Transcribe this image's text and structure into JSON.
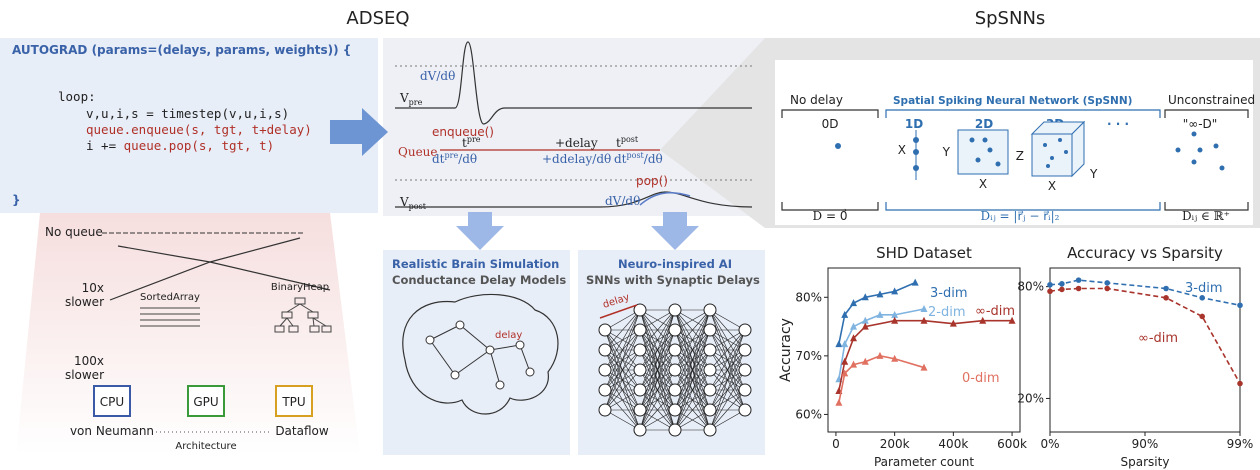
{
  "titles": {
    "left": "ADSEQ",
    "right": "SpSNNs"
  },
  "code": {
    "header": "AUTOGRAD (params=(delays, params, weights)) {",
    "loop": "loop:",
    "step": "v,u,i,s = timestep(v,u,i,s)",
    "enqueue": "queue.enqueue(s, tgt, t+delay)",
    "pop_prefix": "i += ",
    "pop": "queue.pop(s, tgt, t)",
    "footer": "}"
  },
  "hardware": {
    "no_queue": "No queue",
    "slow10": [
      "10x",
      "slower"
    ],
    "slow100": [
      "100x",
      "slower"
    ],
    "sorted_array": "SortedArray",
    "binary_heap": "BinaryHeap",
    "chips": [
      "CPU",
      "GPU",
      "TPU"
    ],
    "von_neumann": "von Neumann",
    "architecture": "Architecture",
    "dataflow": "Dataflow"
  },
  "neuron": {
    "dv_top": "dV/dθ",
    "v_pre": {
      "base": "V",
      "sub": "pre"
    },
    "enqueue": "enqueue()",
    "queue": "Queue",
    "t_pre": {
      "base": "t",
      "sup": "pre"
    },
    "plus_delay": "+delay",
    "t_post": {
      "base": "t",
      "sup": "post"
    },
    "dt_pre": {
      "base": "dt",
      "sup": "pre",
      "rest": "/dθ"
    },
    "ddelay": "+ddelay/dθ",
    "dt_post": {
      "base": "dt",
      "sup": "post",
      "rest": "/dθ"
    },
    "pop": "pop()",
    "v_post": {
      "base": "V",
      "sub": "post"
    },
    "dv_bottom": "dV/dθ"
  },
  "applications": [
    {
      "title": "Realistic Brain Simulation",
      "subtitle": "Conductance Delay Models",
      "label": "delay"
    },
    {
      "title": "Neuro-inspired AI",
      "subtitle": "SNNs with Synaptic Delays",
      "label": "delay"
    }
  ],
  "spsnn": {
    "no_delay": "No delay",
    "spatial": "Spatial Spiking Neural Network (SpSNN)",
    "unconstrained": "Unconstrained",
    "dims": [
      "0D",
      "1D",
      "2D",
      "3D",
      "· · ·",
      "\"∞-D\""
    ],
    "axes_1d": [
      "X"
    ],
    "axes_2d": [
      "Y",
      "X"
    ],
    "axes_3d": [
      "Z",
      "X",
      "Y"
    ],
    "formula_0d": "D = 0⃗",
    "formula_spatial": "Dᵢⱼ = |r⃗ⱼ − r⃗ᵢ|₂",
    "formula_inf": "Dᵢⱼ ∈ ℝ⁺"
  },
  "chart_data": [
    {
      "type": "line",
      "title": "SHD Dataset",
      "xlabel": "Parameter count",
      "ylabel": "Accuracy",
      "marker": "triangle",
      "linestyle": "solid",
      "xlim": [
        -27000,
        627000
      ],
      "ylim": [
        57,
        85
      ],
      "xticks": [
        0,
        {
          "value": 200000,
          "label": "200k"
        },
        {
          "value": 400000,
          "label": "400k"
        },
        {
          "value": 600000,
          "label": "600k"
        }
      ],
      "yticks": [
        {
          "value": 60,
          "label": "60%"
        },
        {
          "value": 70,
          "label": "70%"
        },
        {
          "value": 80,
          "label": "80%"
        }
      ],
      "series": [
        {
          "name": "3-dim",
          "color": "#2f6fb0",
          "x": [
            10000,
            30000,
            60000,
            100000,
            150000,
            200000,
            270000
          ],
          "values": [
            72,
            77,
            79,
            80,
            80.5,
            81,
            82.5
          ]
        },
        {
          "name": "2-dim",
          "color": "#7fb3e0",
          "x": [
            10000,
            30000,
            60000,
            100000,
            150000,
            200000,
            300000
          ],
          "values": [
            66,
            72,
            75,
            76,
            77,
            77,
            78
          ]
        },
        {
          "name": "∞-dim",
          "color": "#a8342c",
          "x": [
            10000,
            30000,
            60000,
            100000,
            200000,
            300000,
            400000,
            500000,
            600000
          ],
          "values": [
            64,
            69,
            73,
            75,
            76,
            76,
            75.5,
            76,
            76
          ]
        },
        {
          "name": "0-dim",
          "color": "#e07060",
          "x": [
            10000,
            30000,
            60000,
            100000,
            150000,
            200000,
            300000
          ],
          "values": [
            62,
            67,
            68.5,
            69,
            70,
            69.5,
            68
          ]
        }
      ]
    },
    {
      "type": "line",
      "title": "Accuracy vs Sparsity",
      "xlabel": "Sparsity",
      "marker": "circle",
      "linestyle": "dashed",
      "xscale": "log(1-x)",
      "xlim": [
        0,
        99
      ],
      "ylim": [
        2,
        90
      ],
      "xticks": [
        {
          "value": 0,
          "label": "0%"
        },
        {
          "value": 90,
          "label": "90%"
        },
        {
          "value": 99,
          "label": "99%"
        }
      ],
      "yticks": [
        {
          "value": 20,
          "label": "20%"
        },
        {
          "value": 80,
          "label": "80%"
        }
      ],
      "x": [
        0,
        25,
        50,
        75,
        94,
        97.5,
        99
      ],
      "series": [
        {
          "name": "3-dim",
          "color": "#2f6fb0",
          "values": [
            81,
            81.5,
            83.5,
            82,
            79,
            74,
            70
          ]
        },
        {
          "name": "∞-dim",
          "color": "#a8342c",
          "values": [
            77.5,
            78.5,
            79,
            79,
            74,
            64,
            28
          ]
        }
      ]
    }
  ]
}
